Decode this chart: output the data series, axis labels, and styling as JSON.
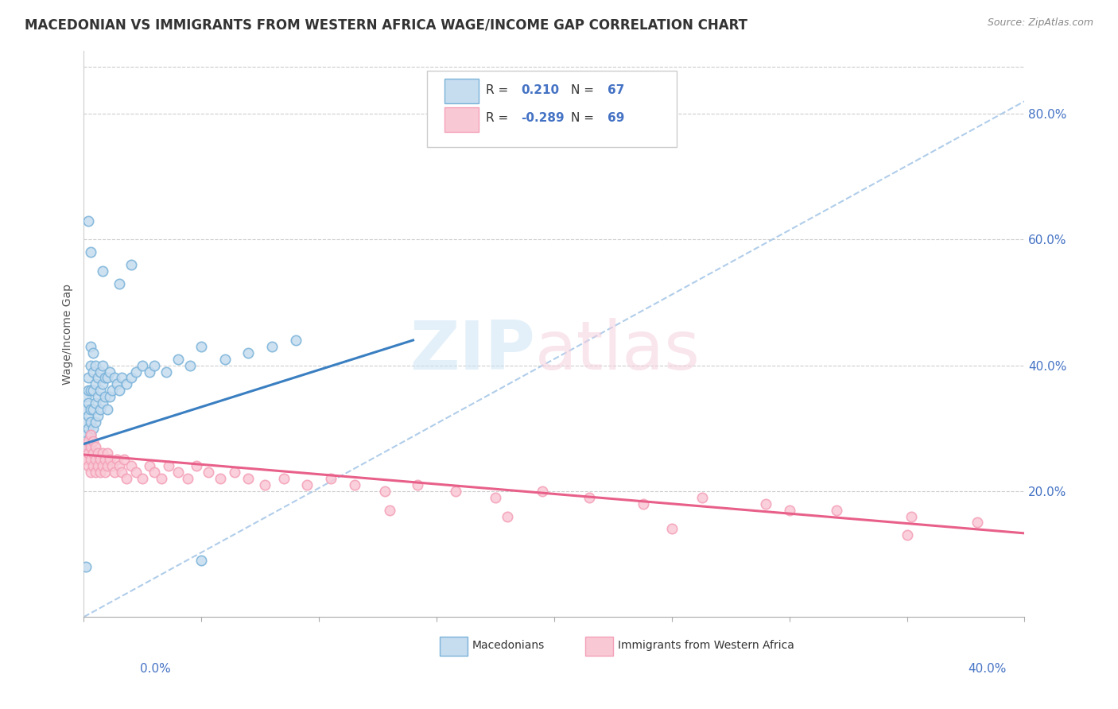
{
  "title": "MACEDONIAN VS IMMIGRANTS FROM WESTERN AFRICA WAGE/INCOME GAP CORRELATION CHART",
  "source": "Source: ZipAtlas.com",
  "ylabel": "Wage/Income Gap",
  "blue_color": "#7ab3d9",
  "pink_color": "#f4a0b8",
  "blue_fill": "#c6dcef",
  "pink_fill": "#f9c8d5",
  "trend_blue": "#3a7fc1",
  "trend_pink": "#e8608a",
  "ref_line_color": "#a8c8e8",
  "xlim": [
    0.0,
    0.4
  ],
  "ylim": [
    0.0,
    0.9
  ],
  "ytick_vals": [
    0.2,
    0.4,
    0.6,
    0.8
  ],
  "ytick_labels": [
    "20.0%",
    "40.0%",
    "60.0%",
    "80.0%"
  ],
  "blue_points_x": [
    0.001,
    0.001,
    0.001,
    0.001,
    0.001,
    0.002,
    0.002,
    0.002,
    0.002,
    0.002,
    0.002,
    0.003,
    0.003,
    0.003,
    0.003,
    0.003,
    0.003,
    0.004,
    0.004,
    0.004,
    0.004,
    0.004,
    0.005,
    0.005,
    0.005,
    0.005,
    0.006,
    0.006,
    0.006,
    0.007,
    0.007,
    0.007,
    0.008,
    0.008,
    0.008,
    0.009,
    0.009,
    0.01,
    0.01,
    0.011,
    0.011,
    0.012,
    0.013,
    0.014,
    0.015,
    0.016,
    0.018,
    0.02,
    0.022,
    0.025,
    0.028,
    0.03,
    0.035,
    0.04,
    0.045,
    0.05,
    0.06,
    0.07,
    0.08,
    0.09,
    0.02,
    0.015,
    0.008,
    0.003,
    0.002,
    0.05,
    0.001
  ],
  "blue_points_y": [
    0.29,
    0.31,
    0.33,
    0.35,
    0.28,
    0.3,
    0.32,
    0.34,
    0.36,
    0.27,
    0.38,
    0.29,
    0.31,
    0.33,
    0.36,
    0.4,
    0.43,
    0.3,
    0.33,
    0.36,
    0.39,
    0.42,
    0.31,
    0.34,
    0.37,
    0.4,
    0.32,
    0.35,
    0.38,
    0.33,
    0.36,
    0.39,
    0.34,
    0.37,
    0.4,
    0.35,
    0.38,
    0.33,
    0.38,
    0.35,
    0.39,
    0.36,
    0.38,
    0.37,
    0.36,
    0.38,
    0.37,
    0.38,
    0.39,
    0.4,
    0.39,
    0.4,
    0.39,
    0.41,
    0.4,
    0.43,
    0.41,
    0.42,
    0.43,
    0.44,
    0.56,
    0.53,
    0.55,
    0.58,
    0.63,
    0.09,
    0.08
  ],
  "pink_points_x": [
    0.001,
    0.001,
    0.002,
    0.002,
    0.002,
    0.003,
    0.003,
    0.003,
    0.003,
    0.004,
    0.004,
    0.004,
    0.005,
    0.005,
    0.005,
    0.006,
    0.006,
    0.007,
    0.007,
    0.008,
    0.008,
    0.009,
    0.009,
    0.01,
    0.01,
    0.011,
    0.012,
    0.013,
    0.014,
    0.015,
    0.016,
    0.017,
    0.018,
    0.02,
    0.022,
    0.025,
    0.028,
    0.03,
    0.033,
    0.036,
    0.04,
    0.044,
    0.048,
    0.053,
    0.058,
    0.064,
    0.07,
    0.077,
    0.085,
    0.095,
    0.105,
    0.115,
    0.128,
    0.142,
    0.158,
    0.175,
    0.195,
    0.215,
    0.238,
    0.263,
    0.29,
    0.32,
    0.352,
    0.38,
    0.13,
    0.18,
    0.25,
    0.3,
    0.35
  ],
  "pink_points_y": [
    0.25,
    0.27,
    0.24,
    0.26,
    0.28,
    0.23,
    0.25,
    0.27,
    0.29,
    0.24,
    0.26,
    0.28,
    0.23,
    0.25,
    0.27,
    0.24,
    0.26,
    0.23,
    0.25,
    0.24,
    0.26,
    0.23,
    0.25,
    0.24,
    0.26,
    0.25,
    0.24,
    0.23,
    0.25,
    0.24,
    0.23,
    0.25,
    0.22,
    0.24,
    0.23,
    0.22,
    0.24,
    0.23,
    0.22,
    0.24,
    0.23,
    0.22,
    0.24,
    0.23,
    0.22,
    0.23,
    0.22,
    0.21,
    0.22,
    0.21,
    0.22,
    0.21,
    0.2,
    0.21,
    0.2,
    0.19,
    0.2,
    0.19,
    0.18,
    0.19,
    0.18,
    0.17,
    0.16,
    0.15,
    0.17,
    0.16,
    0.14,
    0.17,
    0.13
  ],
  "blue_trend_x": [
    0.0,
    0.14
  ],
  "blue_trend_y": [
    0.275,
    0.44
  ],
  "pink_trend_x": [
    0.0,
    0.4
  ],
  "pink_trend_y": [
    0.258,
    0.133
  ]
}
